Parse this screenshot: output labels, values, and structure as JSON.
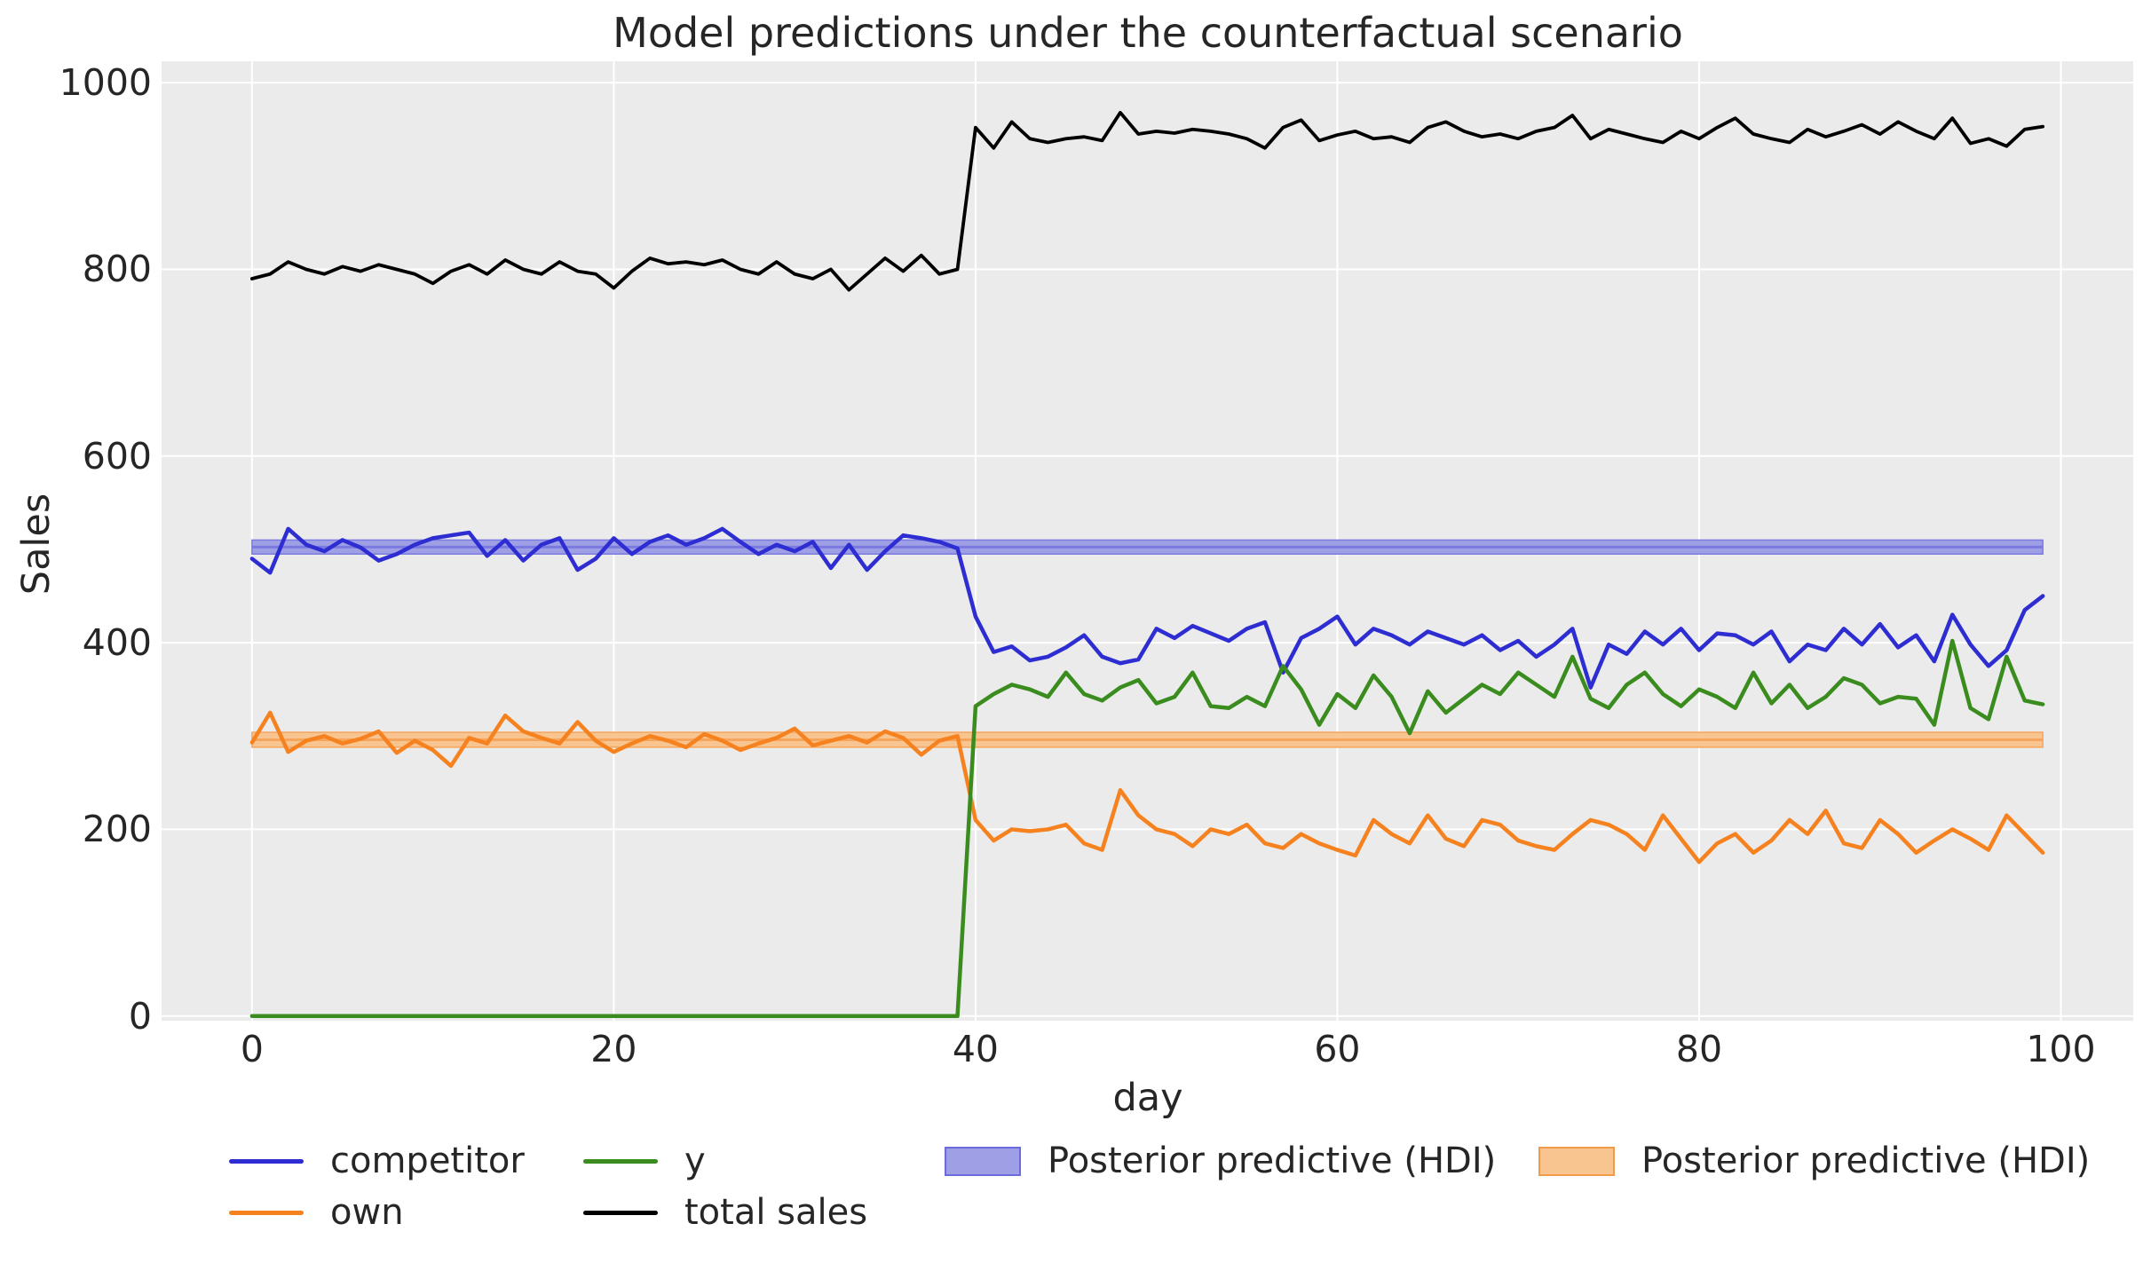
{
  "title": "Model predictions under the counterfactual scenario",
  "colors": {
    "figure_bg": "#ffffff",
    "plot_bg": "#ebebeb",
    "grid": "#ffffff",
    "text": "#262626",
    "competitor": "#2d2dd2",
    "own": "#f5821f",
    "y": "#3a8c1e",
    "total_sales": "#000000",
    "hdi_blue_fill": "#9f9fe5",
    "hdi_blue_line": "#7a7ae0",
    "hdi_orange_fill": "#f8c48f",
    "hdi_orange_line": "#f5a55c"
  },
  "legend": {
    "entries": [
      {
        "label": "competitor",
        "swatch": "line",
        "color": "#2d2dd2"
      },
      {
        "label": "own",
        "swatch": "line",
        "color": "#f5821f"
      },
      {
        "label": "y",
        "swatch": "line",
        "color": "#3a8c1e"
      },
      {
        "label": "total sales",
        "swatch": "line",
        "color": "#000000"
      },
      {
        "label": "Posterior predictive (HDI)",
        "swatch": "patch",
        "fill": "#9f9fe5",
        "edge": "#6b6bdd"
      },
      {
        "label": "Posterior predictive (HDI)",
        "swatch": "patch",
        "fill": "#f8c48f",
        "edge": "#f09a4a"
      }
    ]
  },
  "chart_data": {
    "type": "line",
    "title": "Model predictions under the counterfactual scenario",
    "xlabel": "day",
    "ylabel": "Sales",
    "xlim": [
      -5,
      104
    ],
    "ylim": [
      -5,
      1023
    ],
    "x_ticks": [
      0,
      20,
      40,
      60,
      80,
      100
    ],
    "y_ticks": [
      0,
      200,
      400,
      600,
      800,
      1000
    ],
    "grid": true,
    "legend_position": "below",
    "x": [
      0,
      1,
      2,
      3,
      4,
      5,
      6,
      7,
      8,
      9,
      10,
      11,
      12,
      13,
      14,
      15,
      16,
      17,
      18,
      19,
      20,
      21,
      22,
      23,
      24,
      25,
      26,
      27,
      28,
      29,
      30,
      31,
      32,
      33,
      34,
      35,
      36,
      37,
      38,
      39,
      40,
      41,
      42,
      43,
      44,
      45,
      46,
      47,
      48,
      49,
      50,
      51,
      52,
      53,
      54,
      55,
      56,
      57,
      58,
      59,
      60,
      61,
      62,
      63,
      64,
      65,
      66,
      67,
      68,
      69,
      70,
      71,
      72,
      73,
      74,
      75,
      76,
      77,
      78,
      79,
      80,
      81,
      82,
      83,
      84,
      85,
      86,
      87,
      88,
      89,
      90,
      91,
      92,
      93,
      94,
      95,
      96,
      97,
      98,
      99
    ],
    "series": [
      {
        "name": "competitor",
        "color": "#2d2dd2",
        "width": 4.5,
        "values": [
          490,
          475,
          522,
          505,
          498,
          510,
          502,
          488,
          495,
          505,
          512,
          515,
          518,
          493,
          510,
          488,
          505,
          512,
          478,
          490,
          512,
          495,
          508,
          515,
          505,
          512,
          522,
          508,
          495,
          505,
          498,
          508,
          480,
          505,
          478,
          498,
          515,
          512,
          508,
          501,
          428,
          390,
          396,
          381,
          385,
          395,
          408,
          385,
          378,
          382,
          415,
          405,
          418,
          410,
          402,
          415,
          422,
          368,
          405,
          415,
          428,
          398,
          415,
          408,
          398,
          412,
          405,
          398,
          408,
          392,
          402,
          385,
          398,
          415,
          352,
          398,
          388,
          412,
          398,
          415,
          392,
          410,
          408,
          398,
          412,
          380,
          398,
          392,
          415,
          398,
          420,
          395,
          408,
          380,
          430,
          398,
          375,
          392,
          435,
          450
        ]
      },
      {
        "name": "own",
        "color": "#f5821f",
        "width": 4.5,
        "values": [
          293,
          325,
          283,
          295,
          300,
          292,
          297,
          305,
          282,
          295,
          285,
          268,
          298,
          292,
          322,
          305,
          298,
          292,
          315,
          295,
          283,
          292,
          300,
          295,
          288,
          302,
          295,
          285,
          292,
          298,
          308,
          290,
          295,
          300,
          293,
          305,
          298,
          280,
          295,
          300,
          210,
          188,
          200,
          198,
          200,
          205,
          185,
          178,
          242,
          215,
          200,
          195,
          182,
          200,
          195,
          205,
          185,
          180,
          195,
          185,
          178,
          172,
          210,
          195,
          185,
          215,
          190,
          182,
          210,
          205,
          188,
          182,
          178,
          195,
          210,
          205,
          195,
          178,
          215,
          190,
          165,
          185,
          195,
          175,
          188,
          210,
          195,
          220,
          185,
          180,
          210,
          195,
          175,
          188,
          200,
          190,
          178,
          215,
          195,
          175
        ]
      },
      {
        "name": "y",
        "color": "#3a8c1e",
        "width": 4.5,
        "values": [
          0,
          0,
          0,
          0,
          0,
          0,
          0,
          0,
          0,
          0,
          0,
          0,
          0,
          0,
          0,
          0,
          0,
          0,
          0,
          0,
          0,
          0,
          0,
          0,
          0,
          0,
          0,
          0,
          0,
          0,
          0,
          0,
          0,
          0,
          0,
          0,
          0,
          0,
          0,
          0,
          332,
          345,
          355,
          350,
          342,
          368,
          345,
          338,
          352,
          360,
          335,
          342,
          368,
          332,
          330,
          342,
          332,
          375,
          350,
          312,
          345,
          330,
          365,
          342,
          303,
          348,
          325,
          340,
          355,
          345,
          368,
          355,
          342,
          385,
          340,
          330,
          355,
          368,
          345,
          332,
          350,
          342,
          330,
          368,
          335,
          355,
          330,
          342,
          362,
          355,
          335,
          342,
          340,
          312,
          402,
          330,
          318,
          385,
          338,
          334
        ]
      },
      {
        "name": "total sales",
        "color": "#000000",
        "width": 3.8,
        "values": [
          790,
          795,
          808,
          800,
          795,
          803,
          798,
          805,
          800,
          795,
          785,
          798,
          805,
          795,
          810,
          800,
          795,
          808,
          798,
          795,
          780,
          798,
          812,
          806,
          808,
          805,
          810,
          800,
          795,
          808,
          795,
          790,
          800,
          778,
          795,
          812,
          798,
          815,
          795,
          800,
          952,
          930,
          958,
          940,
          936,
          940,
          942,
          938,
          968,
          945,
          948,
          946,
          950,
          948,
          945,
          940,
          930,
          952,
          960,
          938,
          944,
          948,
          940,
          942,
          936,
          952,
          958,
          948,
          942,
          945,
          940,
          948,
          952,
          965,
          940,
          950,
          945,
          940,
          936,
          948,
          940,
          952,
          962,
          945,
          940,
          936,
          950,
          942,
          948,
          955,
          945,
          958,
          948,
          940,
          962,
          935,
          940,
          932,
          950,
          953
        ]
      }
    ],
    "bands": [
      {
        "label": "Posterior predictive (HDI)",
        "series": "competitor",
        "lo": 495,
        "hi": 510,
        "mid": 502.5,
        "x_start": 0,
        "x_end": 99,
        "fill": "#9f9fe5",
        "line": "#7a7ae0"
      },
      {
        "label": "Posterior predictive (HDI)",
        "series": "own",
        "lo": 288,
        "hi": 304,
        "mid": 296,
        "x_start": 0,
        "x_end": 99,
        "fill": "#f8c48f",
        "line": "#f5a55c"
      }
    ]
  }
}
